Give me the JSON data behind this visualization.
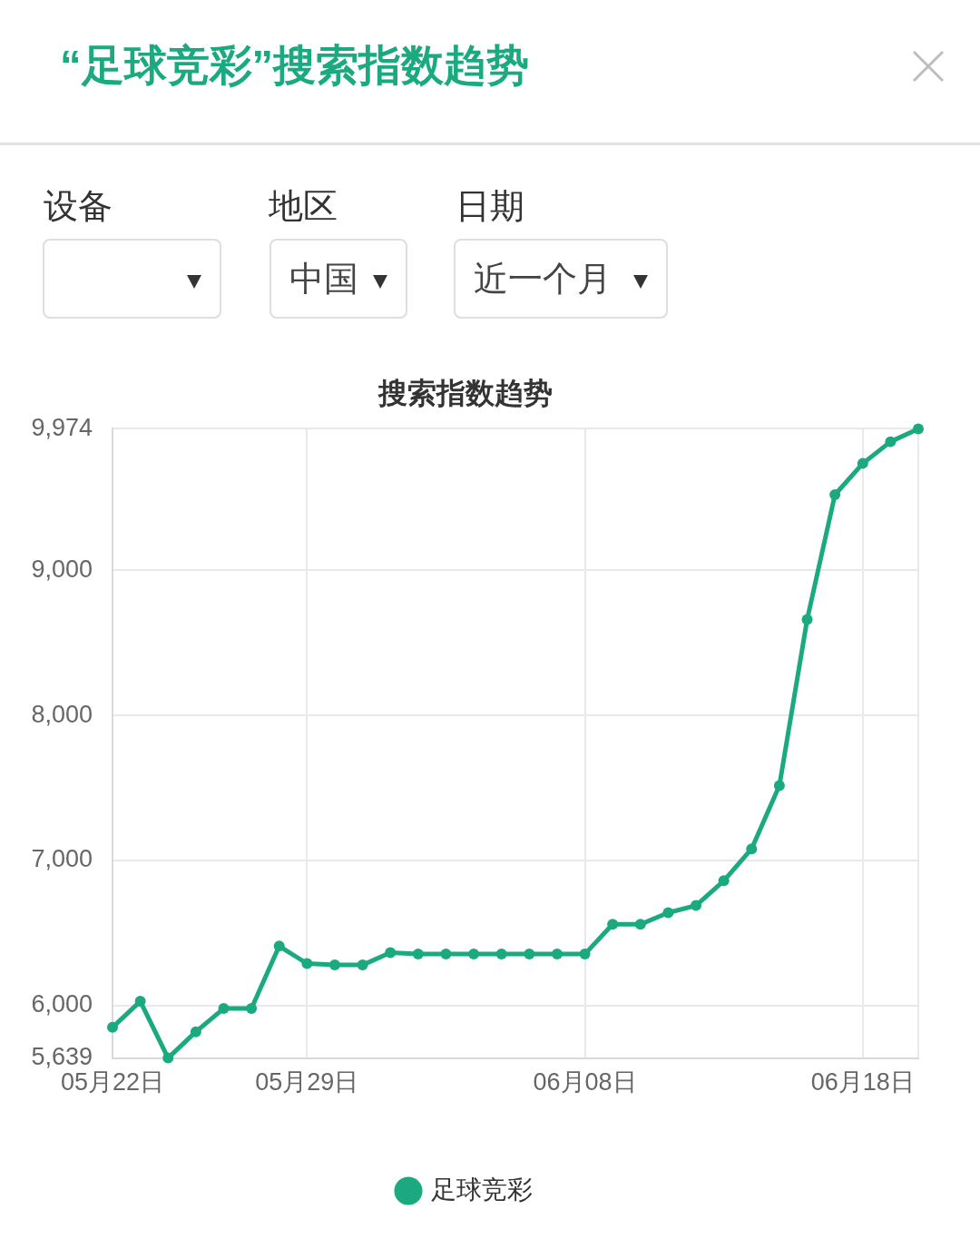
{
  "chart_data": {
    "type": "line",
    "title": "“足球竞彩”搜索指数趋势",
    "subtitle": "搜索指数趋势",
    "annotations": [
      "设备",
      "地区",
      "日期",
      "中国",
      "近一个月"
    ],
    "categories": [
      "05月22日",
      null,
      null,
      null,
      null,
      null,
      null,
      "05月29日",
      null,
      null,
      null,
      null,
      null,
      null,
      null,
      null,
      null,
      "06月08日",
      null,
      null,
      null,
      null,
      null,
      null,
      null,
      null,
      null,
      "06月18日",
      null,
      null
    ],
    "series": [
      {
        "name": "足球竞彩",
        "color": "#1baa80",
        "values": [
          5850,
          6030,
          5639,
          5820,
          5980,
          5980,
          6410,
          6290,
          6280,
          6280,
          6365,
          6355,
          6355,
          6355,
          6355,
          6355,
          6355,
          6355,
          6560,
          6560,
          6640,
          6690,
          6860,
          7080,
          7515,
          8660,
          9520,
          9735,
          9885,
          9974
        ]
      }
    ],
    "ylim": [
      5639,
      9974
    ],
    "yticks": [
      {
        "value": 5639,
        "label": "5,639"
      },
      {
        "value": 6000,
        "label": "6,000"
      },
      {
        "value": 7000,
        "label": "7,000"
      },
      {
        "value": 8000,
        "label": "8,000"
      },
      {
        "value": 9000,
        "label": "9,000"
      },
      {
        "value": 9974,
        "label": "9,974"
      }
    ],
    "grid": true,
    "legend": "bottom",
    "marker": "circle",
    "line_style": "solid"
  }
}
